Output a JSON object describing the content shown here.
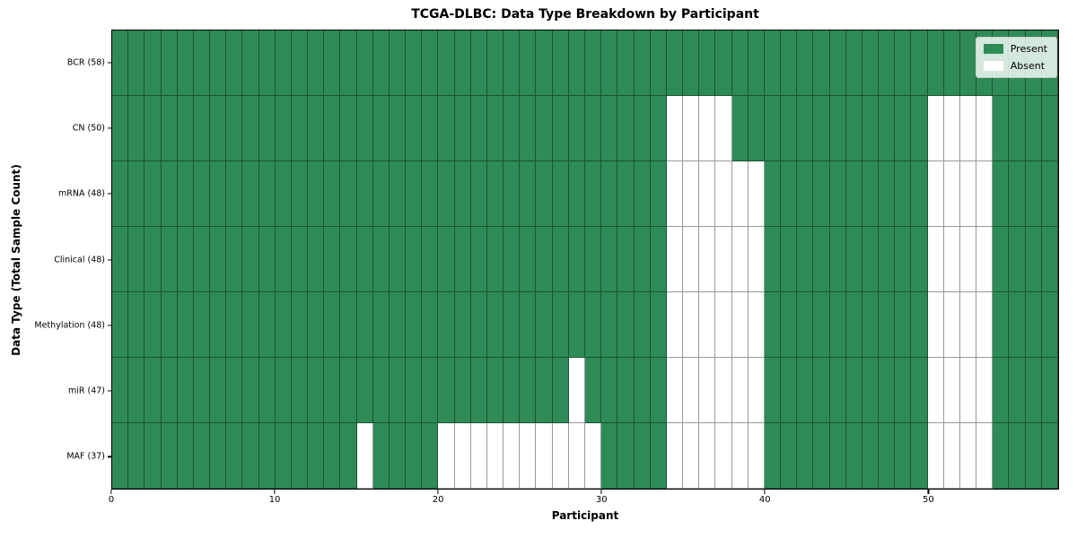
{
  "chart_data": {
    "type": "heatmap",
    "title": "TCGA-DLBC: Data Type Breakdown by Participant",
    "xlabel": "Participant",
    "ylabel": "Data Type (Total Sample Count)",
    "n_participants": 58,
    "x_ticks": [
      0,
      10,
      20,
      30,
      40,
      50
    ],
    "x_range": [
      0,
      58
    ],
    "grid": true,
    "legend_position": "upper right",
    "legend": {
      "present_label": "Present",
      "absent_label": "Absent"
    },
    "colors": {
      "present": "#2E8B57",
      "absent": "#FFFFFF",
      "grid": "rgba(0,0,0,0.4)",
      "spine": "#000000"
    },
    "rows": [
      {
        "label": "BCR (58)",
        "name": "bcr",
        "total_samples": 58,
        "absent": []
      },
      {
        "label": "CN (50)",
        "name": "cn",
        "total_samples": 50,
        "absent": [
          34,
          35,
          36,
          37,
          50,
          51,
          52,
          53
        ]
      },
      {
        "label": "mRNA (48)",
        "name": "mrna",
        "total_samples": 48,
        "absent": [
          34,
          35,
          36,
          37,
          38,
          39,
          50,
          51,
          52,
          53
        ]
      },
      {
        "label": "Clinical (48)",
        "name": "clinical",
        "total_samples": 48,
        "absent": [
          34,
          35,
          36,
          37,
          38,
          39,
          50,
          51,
          52,
          53
        ]
      },
      {
        "label": "Methylation (48)",
        "name": "methylation",
        "total_samples": 48,
        "absent": [
          34,
          35,
          36,
          37,
          38,
          39,
          50,
          51,
          52,
          53
        ]
      },
      {
        "label": "miR (47)",
        "name": "mir",
        "total_samples": 47,
        "absent": [
          28,
          34,
          35,
          36,
          37,
          38,
          39,
          50,
          51,
          52,
          53
        ]
      },
      {
        "label": "MAF (37)",
        "name": "maf",
        "total_samples": 37,
        "absent": [
          15,
          20,
          21,
          22,
          23,
          24,
          25,
          26,
          27,
          28,
          29,
          34,
          35,
          36,
          37,
          38,
          39,
          50,
          51,
          52,
          53
        ]
      }
    ]
  }
}
